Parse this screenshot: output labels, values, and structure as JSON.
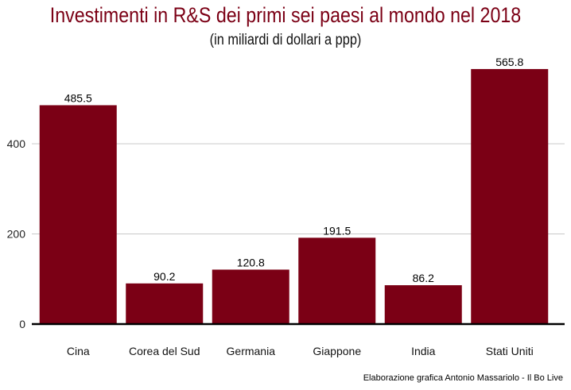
{
  "chart_data": {
    "type": "bar",
    "title": "Investimenti in R&S dei primi sei paesi al mondo nel 2018",
    "subtitle": "(in miliardi di dollari a ppp)",
    "categories": [
      "Cina",
      "Corea del Sud",
      "Germania",
      "Giappone",
      "India",
      "Stati Uniti"
    ],
    "values": [
      485.5,
      90.2,
      120.8,
      191.5,
      86.2,
      565.8
    ],
    "value_labels": [
      "485.5",
      "90.2",
      "120.8",
      "191.5",
      "86.2",
      "565.8"
    ],
    "xlabel": "",
    "ylabel": "",
    "ylim": [
      0,
      580
    ],
    "yticks": [
      0,
      200,
      400
    ],
    "ytick_labels": [
      "0",
      "200",
      "400"
    ],
    "grid": true,
    "legend": "none",
    "bar_color": "#7b0015",
    "caption": "Elaborazione grafica Antonio Massariolo - Il Bo Live"
  }
}
